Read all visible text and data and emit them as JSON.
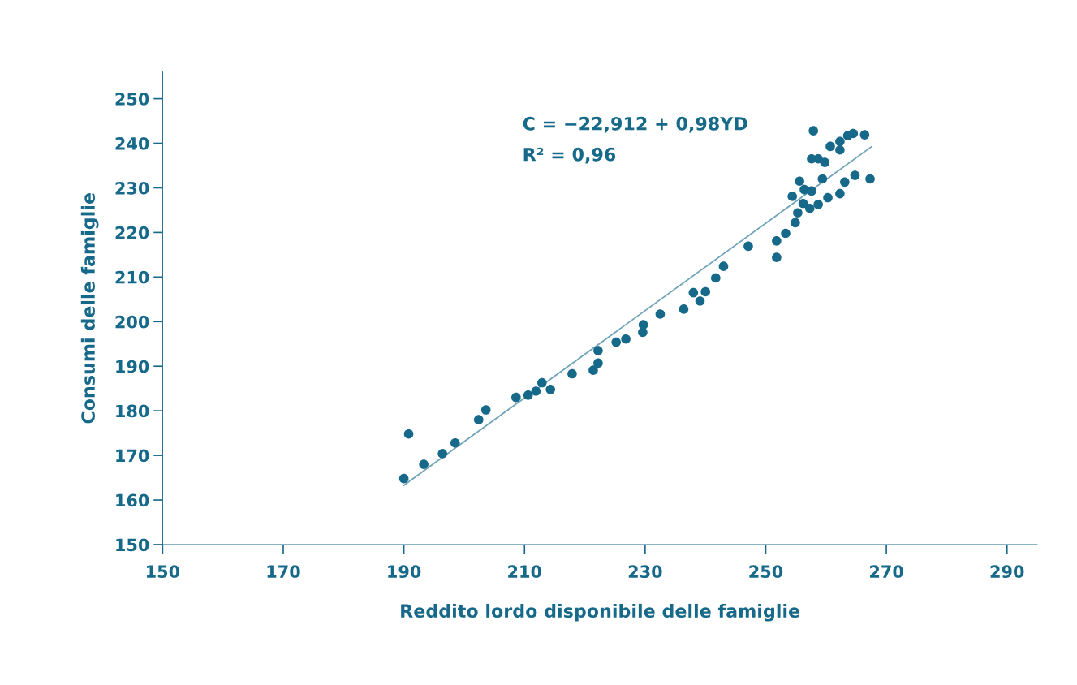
{
  "chart_data": {
    "type": "scatter",
    "xlabel": "Reddito lordo disponibile delle famiglie",
    "ylabel": "Consumi delle famiglie",
    "annotations": [
      "C = −22,912 + 0,98YD",
      "R² = 0,96"
    ],
    "xlim": [
      150,
      295
    ],
    "ylim": [
      150,
      256
    ],
    "xticks": [
      150,
      170,
      190,
      210,
      230,
      250,
      270,
      290
    ],
    "yticks": [
      150,
      160,
      170,
      180,
      190,
      200,
      210,
      220,
      230,
      240,
      250
    ],
    "grid": false,
    "legend": false,
    "series": [
      {
        "marker": "circle",
        "color": "#17698a",
        "x": [
          190.0,
          190.8,
          193.3,
          196.4,
          198.5,
          202.4,
          203.6,
          208.6,
          210.6,
          211.9,
          212.9,
          214.3,
          217.9,
          221.4,
          222.2,
          222.2,
          225.2,
          226.8,
          229.6,
          229.7,
          232.5,
          236.4,
          238.0,
          239.1,
          240.0,
          241.7,
          243.0,
          247.1,
          251.8,
          251.8,
          253.3,
          254.4,
          254.9,
          255.3,
          255.6,
          256.2,
          256.4,
          257.3,
          257.6,
          257.6,
          257.9,
          258.7,
          258.7,
          259.4,
          259.8,
          260.3,
          260.7,
          262.3,
          262.3,
          262.3,
          263.1,
          263.6,
          264.5,
          264.8,
          266.4,
          267.3
        ],
        "values": [
          164.8,
          174.8,
          168.0,
          170.4,
          172.8,
          178.0,
          180.2,
          183.0,
          183.5,
          184.4,
          186.3,
          184.8,
          188.3,
          189.1,
          190.7,
          193.5,
          195.4,
          196.1,
          197.6,
          199.3,
          201.7,
          202.8,
          206.5,
          204.6,
          206.7,
          209.8,
          212.4,
          216.9,
          218.1,
          214.4,
          219.8,
          228.1,
          222.2,
          224.4,
          231.5,
          226.5,
          229.6,
          225.4,
          229.3,
          236.5,
          242.8,
          236.5,
          226.3,
          232.0,
          235.7,
          227.8,
          239.3,
          240.4,
          238.5,
          228.7,
          231.3,
          241.7,
          242.2,
          232.8,
          241.9,
          232.0
        ]
      },
      {
        "type": "line",
        "color": "#6fa3b8",
        "line_style": "solid",
        "x": [
          190,
          267.5
        ],
        "values": [
          163.3,
          239.2
        ]
      }
    ]
  }
}
